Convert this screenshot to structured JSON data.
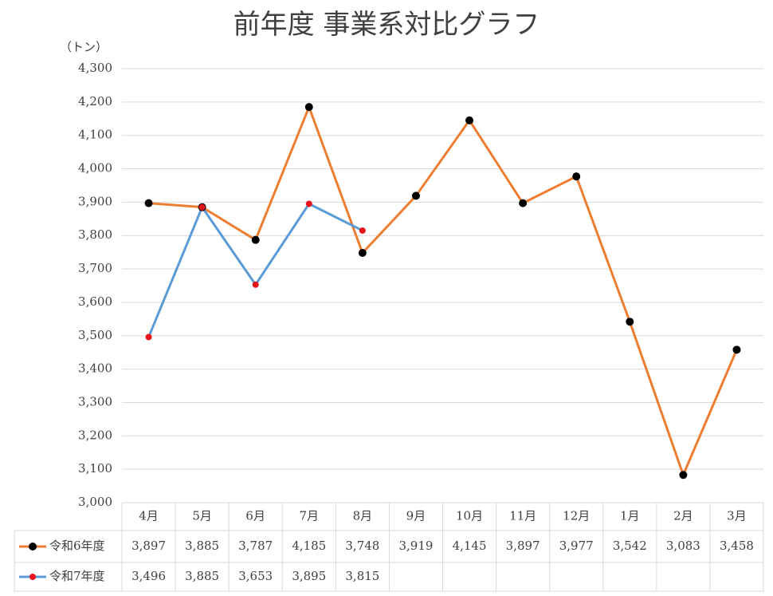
{
  "chart_data": {
    "type": "line",
    "title": "前年度 事業系対比グラフ",
    "y_label": "（トン）",
    "categories": [
      "4月",
      "5月",
      "6月",
      "7月",
      "8月",
      "9月",
      "10月",
      "11月",
      "12月",
      "1月",
      "2月",
      "3月"
    ],
    "series": [
      {
        "name": "令和6年度",
        "color": "#ed7d31",
        "marker_color": "#000000",
        "values": [
          3897,
          3885,
          3787,
          4185,
          3748,
          3919,
          4145,
          3897,
          3977,
          3542,
          3083,
          3458
        ],
        "value_labels": [
          "3,897",
          "3,885",
          "3,787",
          "4,185",
          "3,748",
          "3,919",
          "4,145",
          "3,897",
          "3,977",
          "3,542",
          "3,083",
          "3,458"
        ]
      },
      {
        "name": "令和7年度",
        "color": "#5b9bd5",
        "marker_color": "#e8141c",
        "values": [
          3496,
          3885,
          3653,
          3895,
          3815,
          null,
          null,
          null,
          null,
          null,
          null,
          null
        ],
        "value_labels": [
          "3,496",
          "3,885",
          "3,653",
          "3,895",
          "3,815",
          null,
          null,
          null,
          null,
          null,
          null,
          null
        ]
      }
    ],
    "ylim": [
      3000,
      4300
    ],
    "yticks": [
      {
        "value": 3000,
        "label": "3,000"
      },
      {
        "value": 3100,
        "label": "3,100"
      },
      {
        "value": 3200,
        "label": "3,200"
      },
      {
        "value": 3300,
        "label": "3,300"
      },
      {
        "value": 3400,
        "label": "3,400"
      },
      {
        "value": 3500,
        "label": "3,500"
      },
      {
        "value": 3600,
        "label": "3,600"
      },
      {
        "value": 3700,
        "label": "3,700"
      },
      {
        "value": 3800,
        "label": "3,800"
      },
      {
        "value": 3900,
        "label": "3,900"
      },
      {
        "value": 4000,
        "label": "4,000"
      },
      {
        "value": 4100,
        "label": "4,100"
      },
      {
        "value": 4200,
        "label": "4,200"
      },
      {
        "value": 4300,
        "label": "4,300"
      }
    ],
    "grid": true
  }
}
